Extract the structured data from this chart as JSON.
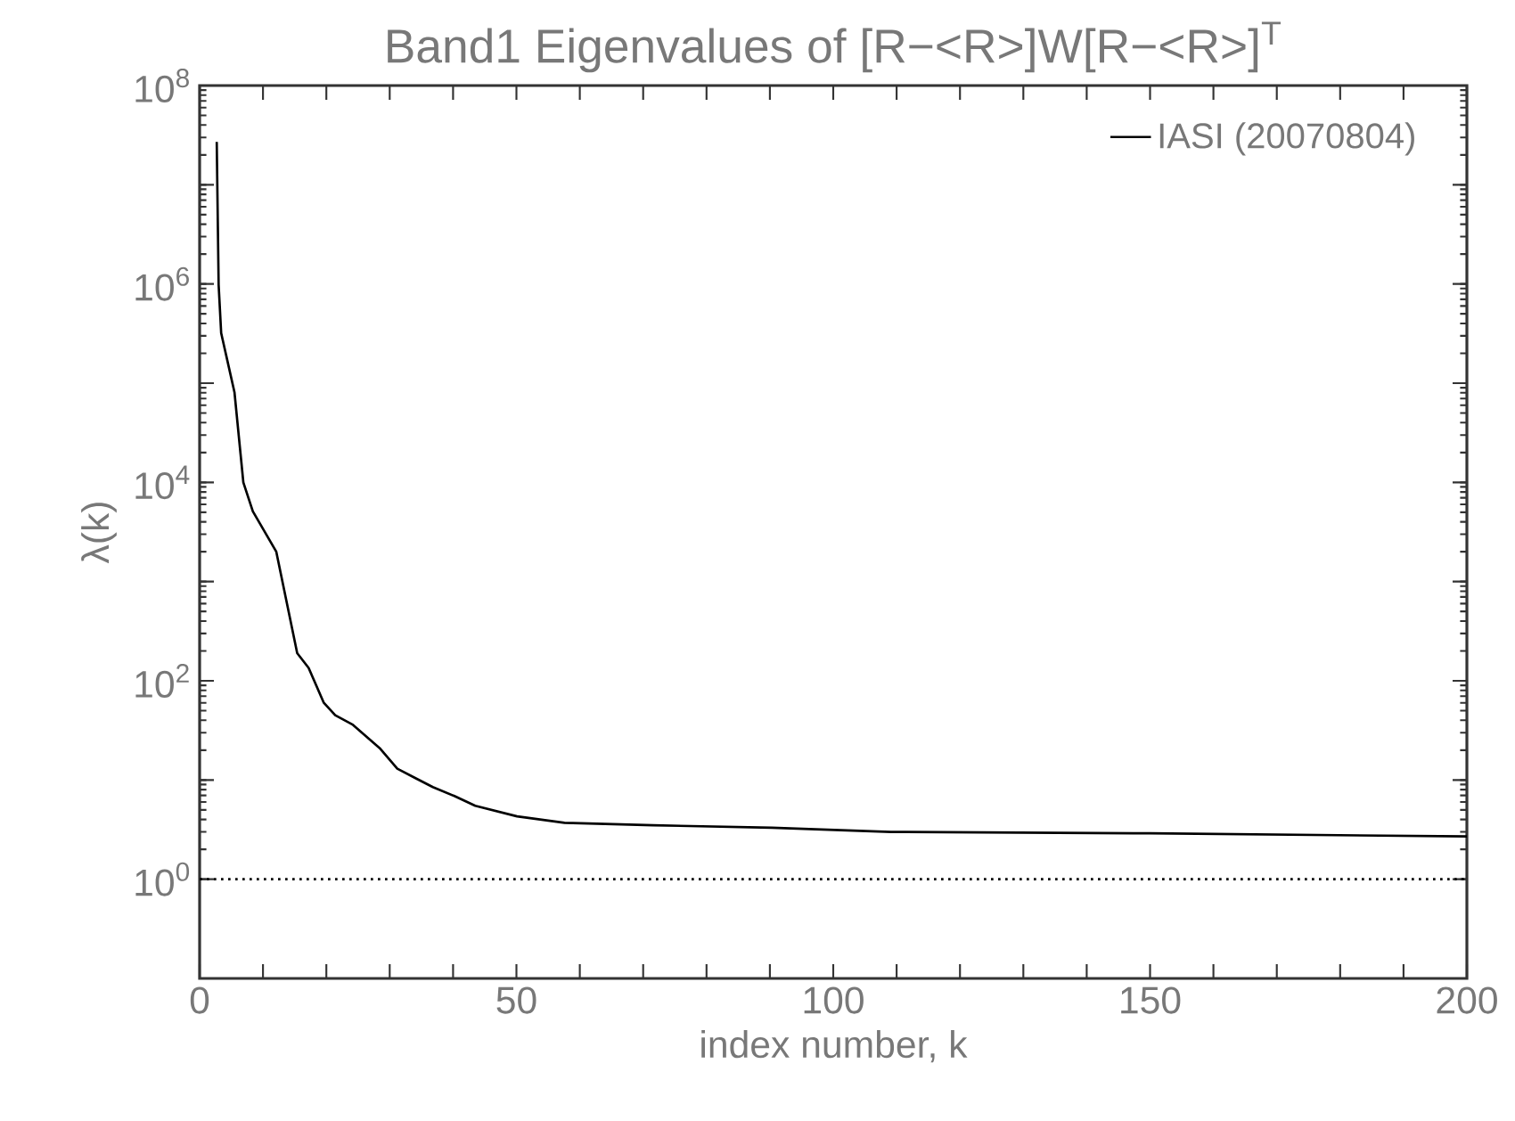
{
  "chart_data": {
    "type": "line",
    "title": "Band1 Eigenvalues of [R−<R>]W[R−<R>]$^{T}$",
    "xlabel": "index number, k",
    "ylabel": "λ(k)",
    "log": "y",
    "legend": "top right",
    "grid": false,
    "line_style": "solid",
    "marker": "none",
    "xlim": [
      0,
      200
    ],
    "ylim": [
      0.1,
      100000000
    ],
    "xticks": [
      0,
      {
        "value": 10,
        "label": null
      },
      {
        "value": 20,
        "label": null
      },
      {
        "value": 30,
        "label": null
      },
      {
        "value": 40,
        "label": null
      },
      50,
      {
        "value": 60,
        "label": null
      },
      {
        "value": 70,
        "label": null
      },
      {
        "value": 80,
        "label": null
      },
      {
        "value": 90,
        "label": null
      },
      100,
      {
        "value": 110,
        "label": null
      },
      {
        "value": 120,
        "label": null
      },
      {
        "value": 130,
        "label": null
      },
      {
        "value": 140,
        "label": null
      },
      150,
      {
        "value": 160,
        "label": null
      },
      {
        "value": 170,
        "label": null
      },
      {
        "value": 180,
        "label": null
      },
      {
        "value": 190,
        "label": null
      },
      200
    ],
    "yticks": [
      {
        "value": 1,
        "label": "10$^{0}$"
      },
      {
        "value": 10,
        "label": null
      },
      {
        "value": 100,
        "label": "10$^{2}$"
      },
      {
        "value": 1000,
        "label": null
      },
      {
        "value": 10000,
        "label": "10$^{4}$"
      },
      {
        "value": 100000,
        "label": null
      },
      {
        "value": 1000000,
        "label": "10$^{6}$"
      },
      {
        "value": 10000000,
        "label": null
      },
      {
        "value": 100000000,
        "label": "10$^{8}$"
      }
    ],
    "ref_lines": [
      {
        "axis": "y",
        "value": 1,
        "line_style": "dotted",
        "color": "#000000"
      }
    ],
    "series": [
      {
        "name": "IASI (20070804)",
        "color": "#000000",
        "x": [
          2.7,
          3.0,
          3.4,
          5.5,
          6.9,
          8.4,
          12.1,
          15.4,
          17.2,
          19.6,
          21.4,
          24.2,
          28.4,
          31.2,
          34.0,
          36.8,
          40.2,
          43.5,
          50.1,
          57.6,
          71.6,
          90.3,
          109.1,
          150,
          200
        ],
        "values": [
          27000000,
          980000,
          320000,
          81000,
          10000,
          5100,
          2000,
          190,
          135,
          60,
          45,
          36,
          21,
          13,
          10.5,
          8.5,
          6.9,
          5.5,
          4.3,
          3.7,
          3.5,
          3.3,
          3.0,
          2.9,
          2.7
        ]
      }
    ]
  }
}
